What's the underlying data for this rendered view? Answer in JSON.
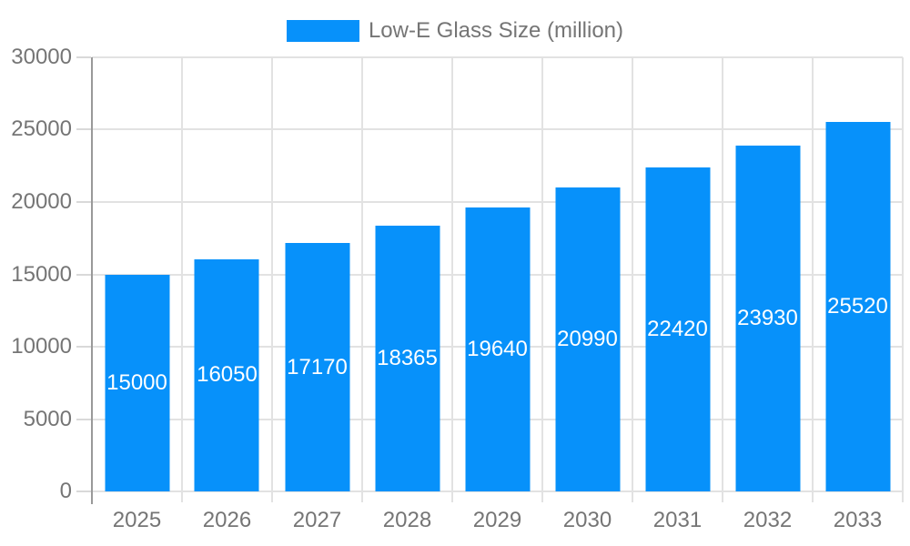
{
  "legend": {
    "label": "Low-E Glass Size (million)"
  },
  "chart_data": {
    "type": "bar",
    "title": "",
    "xlabel": "",
    "ylabel": "",
    "categories": [
      "2025",
      "2026",
      "2027",
      "2028",
      "2029",
      "2030",
      "2031",
      "2032",
      "2033"
    ],
    "values": [
      15000,
      16050,
      17170,
      18365,
      19640,
      20990,
      22420,
      23930,
      25520
    ],
    "series_name": "Low-E Glass Size (million)",
    "ylim": [
      0,
      30000
    ],
    "yticks": [
      0,
      5000,
      10000,
      15000,
      20000,
      25000,
      30000
    ],
    "ytick_labels": [
      "0",
      "5000",
      "10000",
      "15000",
      "20000",
      "25000",
      "30000"
    ],
    "grid": true,
    "legend_position": "top-center",
    "bar_value_labels_inside": true,
    "colors": {
      "bar": "#0791FA",
      "bar_label_text": "#FFFFFF",
      "axis_text": "#757575",
      "grid_line": "#E2E2E2",
      "axis_line": "#999999",
      "tick": "#D9D9D9",
      "background": "#FFFFFF"
    }
  }
}
